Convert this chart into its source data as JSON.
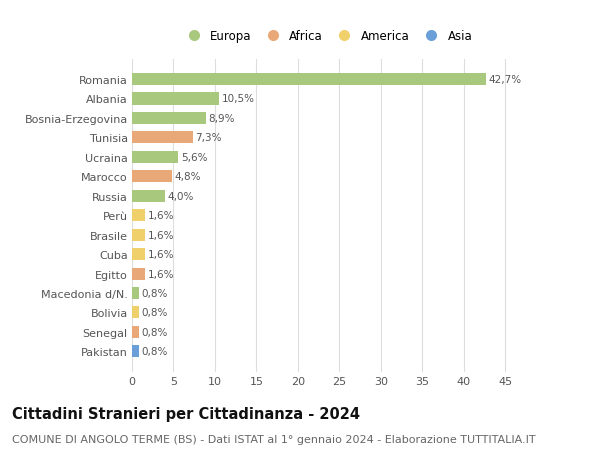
{
  "countries": [
    "Romania",
    "Albania",
    "Bosnia-Erzegovina",
    "Tunisia",
    "Ucraina",
    "Marocco",
    "Russia",
    "Perù",
    "Brasile",
    "Cuba",
    "Egitto",
    "Macedonia d/N.",
    "Bolivia",
    "Senegal",
    "Pakistan"
  ],
  "values": [
    42.7,
    10.5,
    8.9,
    7.3,
    5.6,
    4.8,
    4.0,
    1.6,
    1.6,
    1.6,
    1.6,
    0.8,
    0.8,
    0.8,
    0.8
  ],
  "labels": [
    "42,7%",
    "10,5%",
    "8,9%",
    "7,3%",
    "5,6%",
    "4,8%",
    "4,0%",
    "1,6%",
    "1,6%",
    "1,6%",
    "1,6%",
    "0,8%",
    "0,8%",
    "0,8%",
    "0,8%"
  ],
  "continents": [
    "Europa",
    "Europa",
    "Europa",
    "Africa",
    "Europa",
    "Africa",
    "Europa",
    "America",
    "America",
    "America",
    "Africa",
    "Europa",
    "America",
    "Africa",
    "Asia"
  ],
  "continent_colors": {
    "Europa": "#a8c87e",
    "Africa": "#e8a878",
    "America": "#f0d06a",
    "Asia": "#6a9fd8"
  },
  "legend_order": [
    "Europa",
    "Africa",
    "America",
    "Asia"
  ],
  "title": "Cittadini Stranieri per Cittadinanza - 2024",
  "subtitle": "COMUNE DI ANGOLO TERME (BS) - Dati ISTAT al 1° gennaio 2024 - Elaborazione TUTTITALIA.IT",
  "xlim": [
    0,
    47
  ],
  "xticks": [
    0,
    5,
    10,
    15,
    20,
    25,
    30,
    35,
    40,
    45
  ],
  "background_color": "#ffffff",
  "grid_color": "#dddddd",
  "bar_height": 0.62,
  "title_fontsize": 10.5,
  "subtitle_fontsize": 8,
  "tick_fontsize": 8,
  "label_fontsize": 7.5,
  "legend_fontsize": 8.5
}
